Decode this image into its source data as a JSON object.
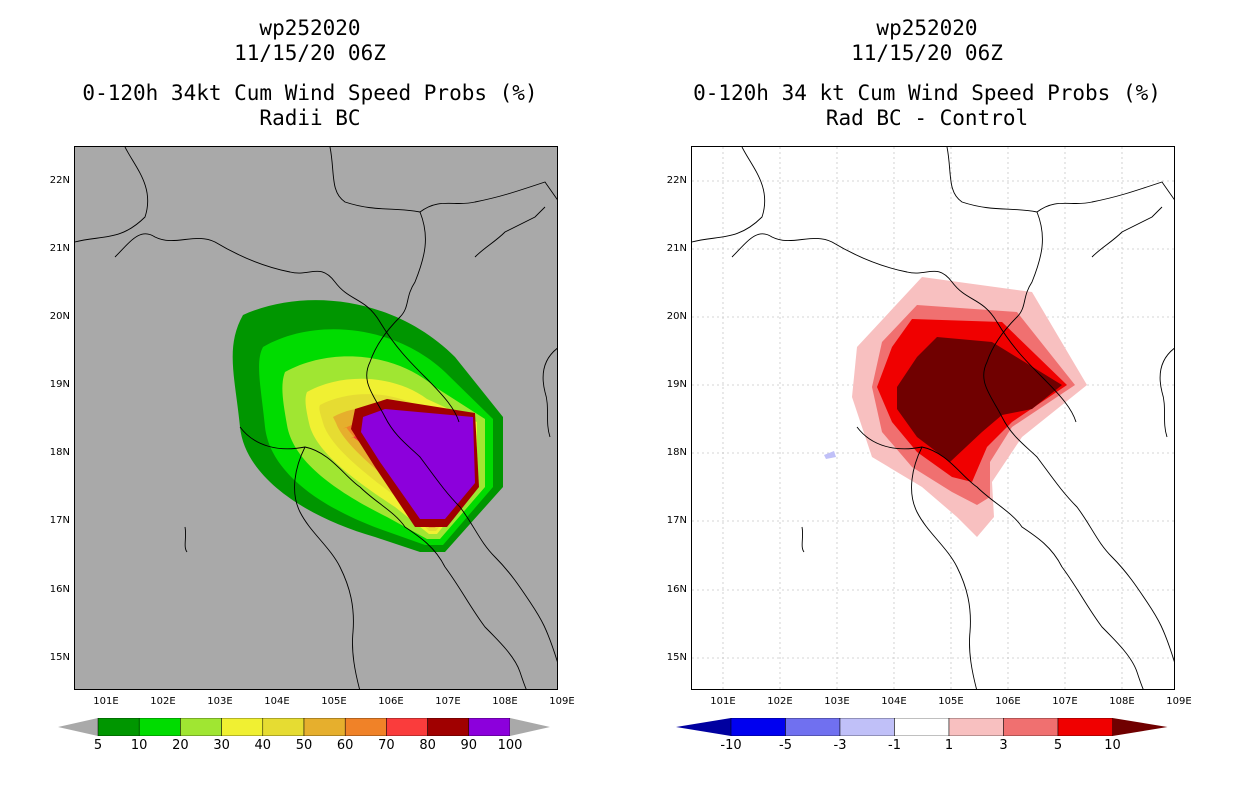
{
  "chart_data": [
    {
      "type": "map-filled-contour",
      "title_lines": [
        "wp252020",
        "11/15/20 06Z",
        "0-120h 34kt Cum Wind Speed Probs (%)",
        "Radii BC"
      ],
      "lat_labels": [
        "22N",
        "21N",
        "20N",
        "19N",
        "18N",
        "17N",
        "16N",
        "15N"
      ],
      "lon_labels": [
        "101E",
        "102E",
        "103E",
        "104E",
        "105E",
        "106E",
        "107E",
        "108E",
        "109E"
      ],
      "lon_range": [
        100.5,
        109.0
      ],
      "lat_range": [
        14.5,
        22.5
      ],
      "background": "#a9a9a9",
      "grid": false,
      "colorbar": {
        "levels": [
          "5",
          "10",
          "20",
          "30",
          "40",
          "50",
          "60",
          "70",
          "80",
          "90",
          "100"
        ],
        "colors": [
          "#009600",
          "#00dc00",
          "#a0e632",
          "#f0f032",
          "#e6dc32",
          "#e6af2d",
          "#f08228",
          "#fa3c3c",
          "#a00000",
          "#8c00dc"
        ],
        "under_color": "#a9a9a9",
        "over_color": "#a9a9a9"
      },
      "max_probability_region": {
        "lon": [
          105.6,
          107.6
        ],
        "lat": [
          16.9,
          18.6
        ],
        "category": "90-100"
      }
    },
    {
      "type": "map-filled-contour",
      "title_lines": [
        "wp252020",
        "11/15/20 06Z",
        "0-120h 34 kt Cum Wind Speed Probs (%)",
        "Rad BC - Control"
      ],
      "lat_labels": [
        "22N",
        "21N",
        "20N",
        "19N",
        "18N",
        "17N",
        "16N",
        "15N"
      ],
      "lon_labels": [
        "101E",
        "102E",
        "103E",
        "104E",
        "105E",
        "106E",
        "107E",
        "108E",
        "109E"
      ],
      "lon_range": [
        100.5,
        109.0
      ],
      "lat_range": [
        14.5,
        22.5
      ],
      "background": "#ffffff",
      "grid": true,
      "colorbar": {
        "levels": [
          "-10",
          "-5",
          "-3",
          "-1",
          "1",
          "3",
          "5",
          "10"
        ],
        "colors": [
          "#0000a0",
          "#0000f0",
          "#7070f0",
          "#c0c0f8",
          "#ffffff",
          "#f8c0c0",
          "#f07070",
          "#f00000",
          "#700000"
        ]
      },
      "max_difference_region": {
        "lon": [
          104.0,
          107.2
        ],
        "lat": [
          17.9,
          19.7
        ],
        "category": ">10"
      }
    }
  ]
}
